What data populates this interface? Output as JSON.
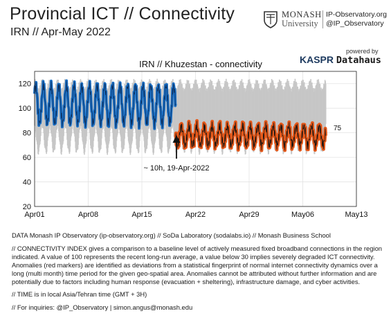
{
  "header": {
    "title": "Provincial ICT // Connectivity",
    "subtitle": "IRN // Apr-May 2022",
    "university_line1": "MONASH",
    "university_line2": "University",
    "site": "IP-Observatory.org",
    "handle": "@IP_Observatory",
    "powered_by": "powered by",
    "brand_a": "KASPR",
    "brand_b": "Datahaus"
  },
  "chart_data": {
    "type": "line",
    "title": "IRN // Khuzestan - connectivity",
    "xlabel": "",
    "ylabel": "",
    "x_ticks": [
      "Apr01",
      "Apr08",
      "Apr15",
      "Apr22",
      "Apr29",
      "May06",
      "May13"
    ],
    "x_range": [
      "2022-04-01",
      "2022-05-13"
    ],
    "y_ticks": [
      20,
      40,
      60,
      80,
      100,
      120
    ],
    "ylim": [
      20,
      130
    ],
    "grid": true,
    "series": [
      {
        "role": "baseline_band",
        "color": "#c7c7c7",
        "x_range": [
          "2022-04-01",
          "2022-05-09"
        ],
        "daily_min": 64,
        "daily_max": 122
      },
      {
        "role": "connectivity",
        "color": "#1b6fc4",
        "x_range": [
          "2022-04-01",
          "2022-04-19"
        ],
        "daily_low": 88,
        "daily_high": 118
      },
      {
        "role": "connectivity_anomaly",
        "color": "#e4581a",
        "x_range": [
          "2022-04-19",
          "2022-05-09"
        ],
        "daily_low": 70,
        "daily_high": 85
      }
    ],
    "final_value": "75",
    "annotation": {
      "text": "~ 10h, 19-Apr-2022",
      "date": "2022-04-19 10:00"
    }
  },
  "notes": {
    "data": "DATA Monash IP Observatory (ip-observatory.org) // SoDa Laboratory (sodalabs.io) // Monash Business School",
    "index": "// CONNECTIVITY INDEX gives a comparison to a baseline level of actively measured fixed broadband connections in the region indicated. A value of 100 represents the recent long-run average, a value below 30 implies severely degraded ICT connectivity. Anomalies (red markers) are identified as deviations from a statistical fingerprint of normal internet connectivity dynamics over a long (multi month) time period for the given geo-spatial area. Anomalies cannot be attributed without further information and are potentially due to factors including human response (evacuation + sheltering), infrastructure damage, and cyber activities.",
    "time": "// TIME is in local Asia/Tehran time (GMT + 3H)",
    "inquiries": "// For inquiries: @IP_Observatory  | simon.angus@monash.edu"
  }
}
